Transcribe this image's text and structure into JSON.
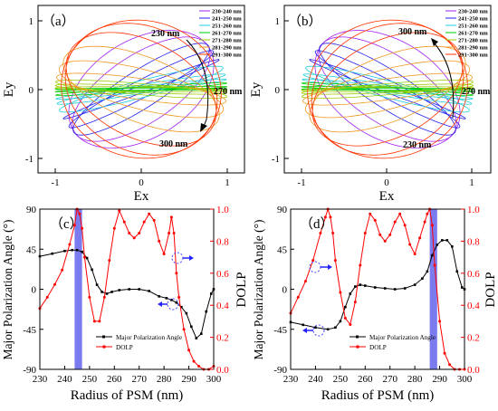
{
  "panels": {
    "a": {
      "label": "（a）",
      "xlabel": "Ex",
      "ylabel": "Ey"
    },
    "b": {
      "label": "（b）",
      "xlabel": "Ex",
      "ylabel": "Ey"
    },
    "c": {
      "label": "（c）",
      "xlabel": "Radius of PSM (nm)",
      "ylabel": "Major Polarization Angle (°)",
      "ylabel2": "DOLP"
    },
    "d": {
      "label": "（d）",
      "xlabel": "Radius of PSM (nm)",
      "ylabel": "Major Polarization Angle (°)",
      "ylabel2": "DOLP"
    }
  },
  "ticks": {
    "ellipse_x": [
      "-1",
      "0",
      "1"
    ],
    "ellipse_y": [
      "-1",
      "0",
      "1"
    ],
    "radius_x": [
      "230",
      "240",
      "250",
      "260",
      "270",
      "280",
      "290",
      "300"
    ],
    "angle_y": [
      "90",
      "45",
      "0",
      "-45",
      "-90"
    ],
    "dolp_y": [
      "1.0",
      "0.8",
      "0.6",
      "0.4",
      "0.2",
      "0.0"
    ]
  },
  "annotations": {
    "a": {
      "top": "230 nm",
      "right": "270 nm",
      "bottom": "300 nm"
    },
    "b": {
      "top": "300 nm",
      "right": "270 nm",
      "bottom": "230 nm"
    }
  },
  "colors": {
    "c1": "#a020f0",
    "c2": "#2222ee",
    "c3": "#22ccdd",
    "c4": "#00cc00",
    "c5": "#99cc00",
    "c6": "#ee9922",
    "c7": "#ff3300",
    "angle": "#000000",
    "dolp": "#ff0000",
    "band": "#7b7bf0"
  },
  "chart_data": [
    {
      "panel": "a",
      "type": "line",
      "xlabel": "Ex",
      "ylabel": "Ey",
      "xlim": [
        -1.2,
        1.2
      ],
      "ylim": [
        -1.2,
        1.2
      ],
      "series": [
        {
          "name": "230-240 nm",
          "color": "#a020f0"
        },
        {
          "name": "241-250 nm",
          "color": "#2222ee"
        },
        {
          "name": "251-260 nm",
          "color": "#22ccdd"
        },
        {
          "name": "261-270 nm",
          "color": "#00cc00"
        },
        {
          "name": "271-280 nm",
          "color": "#99cc00"
        },
        {
          "name": "281-290 nm",
          "color": "#ee9922"
        },
        {
          "name": "291-300 nm",
          "color": "#ff3300"
        }
      ],
      "ellipses": [
        {
          "angle": 45,
          "dolp": 0.35,
          "series": 0
        },
        {
          "angle": 42,
          "dolp": 0.55,
          "series": 0
        },
        {
          "angle": 39,
          "dolp": 0.75,
          "series": 1
        },
        {
          "angle": 33,
          "dolp": 0.88,
          "series": 1
        },
        {
          "angle": 25,
          "dolp": 0.95,
          "series": 1
        },
        {
          "angle": 18,
          "dolp": 0.88,
          "series": 2
        },
        {
          "angle": 12,
          "dolp": 0.94,
          "series": 2
        },
        {
          "angle": 8,
          "dolp": 0.96,
          "series": 2
        },
        {
          "angle": 5,
          "dolp": 0.97,
          "series": 3
        },
        {
          "angle": 2,
          "dolp": 0.98,
          "series": 3
        },
        {
          "angle": 0,
          "dolp": 0.99,
          "series": 3
        },
        {
          "angle": -1,
          "dolp": 0.97,
          "series": 4
        },
        {
          "angle": -3,
          "dolp": 0.95,
          "series": 4
        },
        {
          "angle": -6,
          "dolp": 0.92,
          "series": 4
        },
        {
          "angle": -10,
          "dolp": 0.85,
          "series": 5
        },
        {
          "angle": -18,
          "dolp": 0.72,
          "series": 5
        },
        {
          "angle": -28,
          "dolp": 0.55,
          "series": 5
        },
        {
          "angle": -40,
          "dolp": 0.35,
          "series": 6
        },
        {
          "angle": -55,
          "dolp": 0.18,
          "series": 6
        },
        {
          "angle": -70,
          "dolp": 0.08,
          "series": 6
        }
      ]
    },
    {
      "panel": "b",
      "type": "line",
      "xlabel": "Ex",
      "ylabel": "Ey",
      "xlim": [
        -1.2,
        1.2
      ],
      "ylim": [
        -1.2,
        1.2
      ],
      "series": [
        {
          "name": "230-240 nm",
          "color": "#a020f0"
        },
        {
          "name": "241-250 nm",
          "color": "#2222ee"
        },
        {
          "name": "251-260 nm",
          "color": "#22ccdd"
        },
        {
          "name": "261-270 nm",
          "color": "#00cc00"
        },
        {
          "name": "271-280 nm",
          "color": "#99cc00"
        },
        {
          "name": "281-290 nm",
          "color": "#ee9922"
        },
        {
          "name": "291-300 nm",
          "color": "#ff3300"
        }
      ],
      "ellipses": [
        {
          "angle": -45,
          "dolp": 0.35,
          "series": 0
        },
        {
          "angle": -42,
          "dolp": 0.55,
          "series": 0
        },
        {
          "angle": -39,
          "dolp": 0.75,
          "series": 1
        },
        {
          "angle": -33,
          "dolp": 0.88,
          "series": 1
        },
        {
          "angle": -25,
          "dolp": 0.95,
          "series": 1
        },
        {
          "angle": -18,
          "dolp": 0.88,
          "series": 2
        },
        {
          "angle": -12,
          "dolp": 0.94,
          "series": 2
        },
        {
          "angle": -8,
          "dolp": 0.96,
          "series": 2
        },
        {
          "angle": -5,
          "dolp": 0.97,
          "series": 3
        },
        {
          "angle": -2,
          "dolp": 0.98,
          "series": 3
        },
        {
          "angle": 0,
          "dolp": 0.99,
          "series": 3
        },
        {
          "angle": 1,
          "dolp": 0.97,
          "series": 4
        },
        {
          "angle": 3,
          "dolp": 0.95,
          "series": 4
        },
        {
          "angle": 6,
          "dolp": 0.92,
          "series": 4
        },
        {
          "angle": 10,
          "dolp": 0.85,
          "series": 5
        },
        {
          "angle": 18,
          "dolp": 0.72,
          "series": 5
        },
        {
          "angle": 28,
          "dolp": 0.55,
          "series": 5
        },
        {
          "angle": 40,
          "dolp": 0.35,
          "series": 6
        },
        {
          "angle": 55,
          "dolp": 0.18,
          "series": 6
        },
        {
          "angle": 70,
          "dolp": 0.08,
          "series": 6
        }
      ]
    },
    {
      "panel": "c",
      "type": "line",
      "xlabel": "Radius of PSM (nm)",
      "ylabel": "Major Polarization Angle (°)",
      "ylabel2": "DOLP",
      "xlim": [
        230,
        300
      ],
      "ylim": [
        -90,
        90
      ],
      "y2lim": [
        0,
        1
      ],
      "highlight_band": [
        244,
        247
      ],
      "series": [
        {
          "name": "Major Polarization Angle",
          "axis": "left",
          "x": [
            230,
            235,
            240,
            243,
            245,
            247,
            249,
            251,
            253,
            255,
            257,
            259,
            262,
            266,
            270,
            274,
            278,
            281,
            283,
            285,
            287,
            289,
            291,
            293,
            295,
            297,
            299,
            300
          ],
          "y": [
            37,
            40,
            43,
            44,
            44,
            42,
            35,
            22,
            5,
            -3,
            -5,
            -3,
            -1,
            0,
            0,
            -2,
            -8,
            -10,
            -12,
            -15,
            -20,
            -27,
            -42,
            -55,
            -50,
            -25,
            -5,
            0
          ]
        },
        {
          "name": "DOLP",
          "axis": "right",
          "x": [
            230,
            233,
            236,
            239,
            242,
            244,
            245,
            246,
            247,
            248,
            250,
            252,
            254,
            256,
            258,
            260,
            262,
            264,
            266,
            268,
            270,
            272,
            274,
            276,
            278,
            280,
            282,
            283,
            284,
            285,
            286,
            288,
            290,
            292,
            294,
            296,
            298,
            300
          ],
          "y": [
            0.38,
            0.45,
            0.53,
            0.62,
            0.78,
            0.9,
            1.0,
            0.97,
            0.88,
            0.7,
            0.45,
            0.3,
            0.3,
            0.45,
            0.68,
            0.88,
            0.99,
            0.92,
            0.85,
            0.82,
            0.85,
            0.92,
            0.97,
            0.93,
            0.8,
            0.72,
            0.85,
            0.95,
            0.85,
            0.6,
            0.45,
            0.25,
            0.12,
            0.05,
            0.02,
            0.0,
            0.0,
            0.02
          ]
        }
      ]
    },
    {
      "panel": "d",
      "type": "line",
      "xlabel": "Radius of PSM (nm)",
      "ylabel": "Major Polarization Angle (°)",
      "ylabel2": "DOLP",
      "xlim": [
        230,
        300
      ],
      "ylim": [
        -90,
        90
      ],
      "y2lim": [
        0,
        1
      ],
      "highlight_band": [
        286,
        289
      ],
      "series": [
        {
          "name": "Major Polarization Angle",
          "axis": "left",
          "x": [
            230,
            235,
            240,
            245,
            248,
            250,
            252,
            254,
            256,
            258,
            260,
            264,
            268,
            272,
            276,
            280,
            283,
            285,
            287,
            289,
            291,
            293,
            295,
            297,
            299,
            300
          ],
          "y": [
            -37,
            -40,
            -43,
            -45,
            -43,
            -36,
            -20,
            -5,
            3,
            5,
            4,
            2,
            1,
            0,
            1,
            5,
            12,
            20,
            38,
            50,
            55,
            55,
            48,
            20,
            2,
            0
          ]
        },
        {
          "name": "DOLP",
          "axis": "right",
          "x": [
            230,
            233,
            236,
            239,
            242,
            244,
            245,
            246,
            247,
            248,
            250,
            252,
            254,
            256,
            258,
            260,
            262,
            264,
            266,
            268,
            270,
            272,
            274,
            276,
            278,
            280,
            282,
            284,
            285,
            286,
            287,
            288,
            290,
            292,
            294,
            296,
            298,
            300
          ],
          "y": [
            0.35,
            0.45,
            0.55,
            0.68,
            0.85,
            0.95,
            1.0,
            0.95,
            0.85,
            0.68,
            0.48,
            0.32,
            0.28,
            0.42,
            0.65,
            0.85,
            0.97,
            0.93,
            0.84,
            0.8,
            0.84,
            0.92,
            0.97,
            0.9,
            0.78,
            0.72,
            0.82,
            0.92,
            0.97,
            1.0,
            0.9,
            0.65,
            0.3,
            0.1,
            0.03,
            0.0,
            0.0,
            0.0
          ]
        }
      ]
    }
  ]
}
